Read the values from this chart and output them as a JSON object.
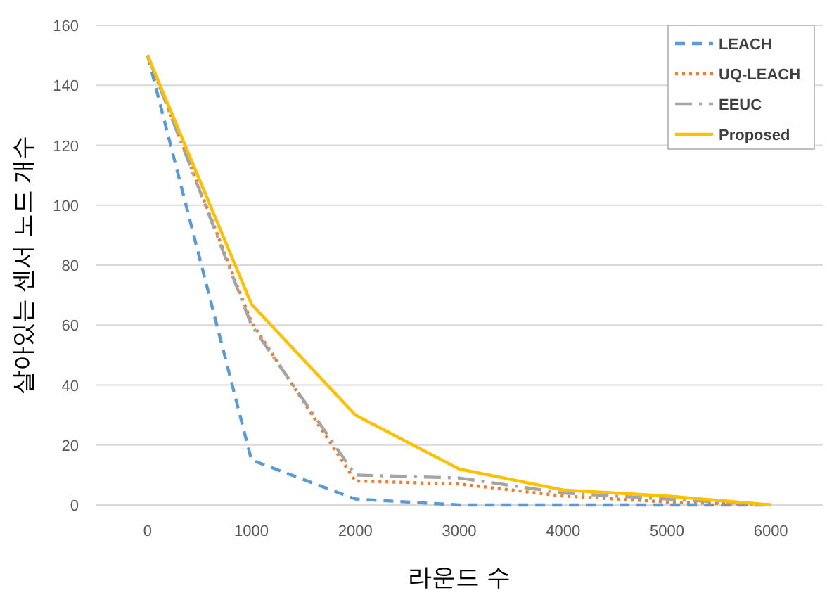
{
  "chart_data": {
    "type": "line",
    "xlabel": "라운드 수",
    "ylabel": "살아있는 센서 노드 개수",
    "categories": [
      "0",
      "1000",
      "2000",
      "3000",
      "4000",
      "5000",
      "6000"
    ],
    "ylim": [
      0,
      160
    ],
    "yticks": [
      0,
      20,
      40,
      60,
      80,
      100,
      120,
      140,
      160
    ],
    "grid": "y",
    "legend": "top right",
    "marker": "none",
    "series": [
      {
        "name": "LEACH",
        "color": "#5b9bd5",
        "line_style": "dashed",
        "values": [
          150,
          15,
          2,
          0,
          0,
          0,
          0
        ]
      },
      {
        "name": "UQ-LEACH",
        "color": "#ed7d31",
        "line_style": "dotted",
        "values": [
          150,
          61,
          8,
          7,
          3,
          1,
          0
        ]
      },
      {
        "name": "EEUC",
        "color": "#a5a5a5",
        "line_style": "dashdot",
        "values": [
          150,
          60,
          10,
          9,
          4,
          2,
          0
        ]
      },
      {
        "name": "Proposed",
        "color": "#ffc000",
        "line_style": "solid",
        "values": [
          150,
          67,
          30,
          12,
          5,
          3,
          0
        ]
      }
    ]
  }
}
